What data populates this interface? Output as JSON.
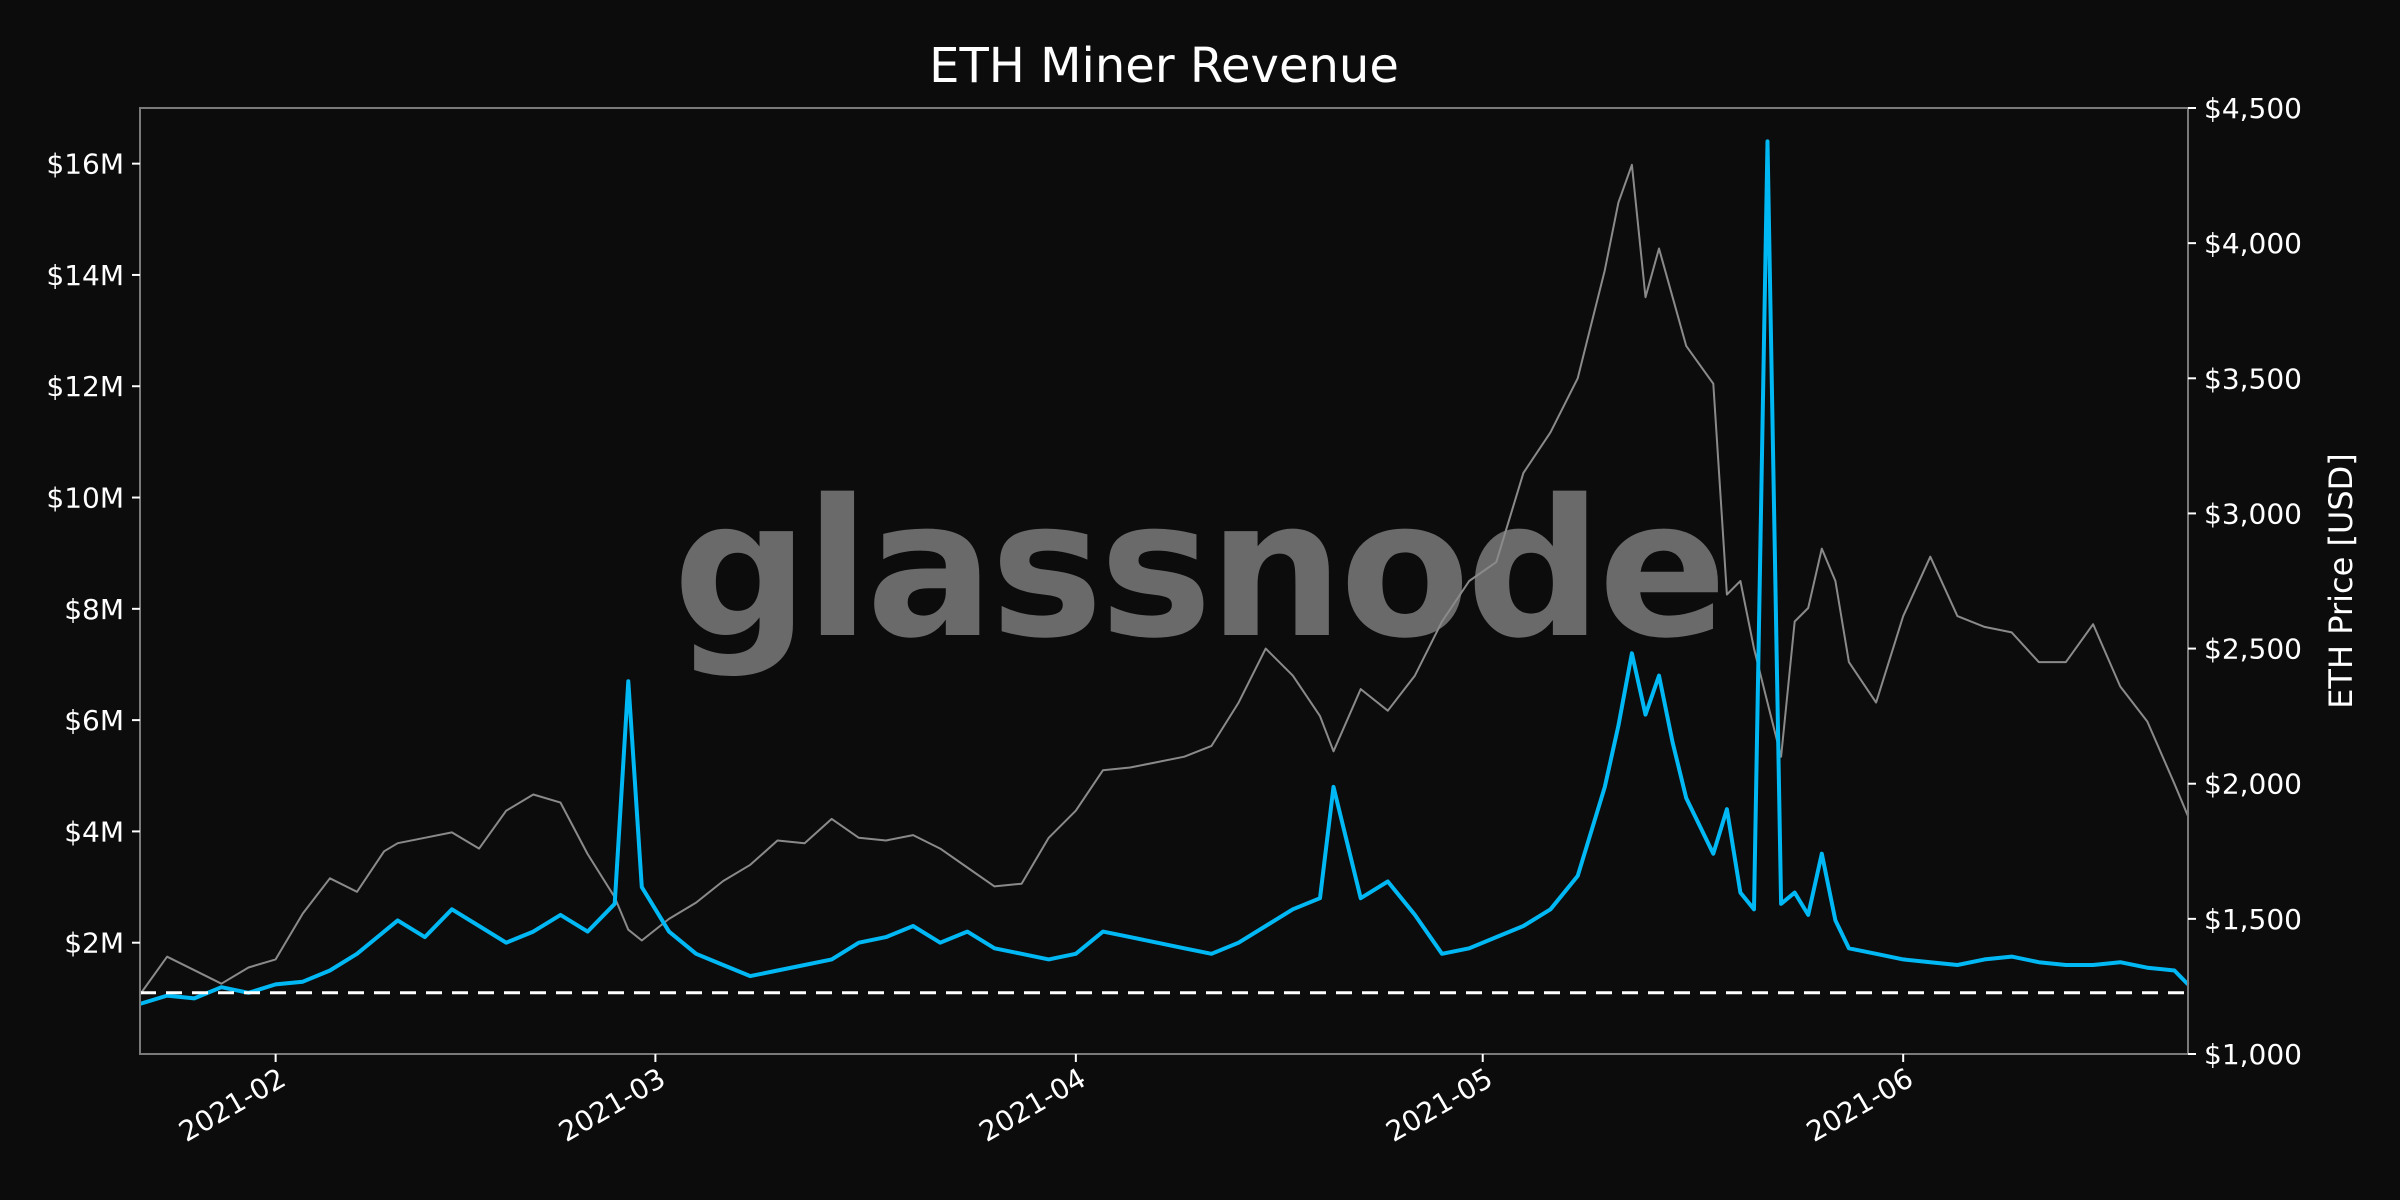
{
  "chart_data": {
    "type": "line",
    "title": "ETH Miner Revenue",
    "watermark": "glassnode",
    "x_range": [
      "2021-01-22",
      "2021-06-22"
    ],
    "x_ticks": [
      "2021-02",
      "2021-03",
      "2021-04",
      "2021-05",
      "2021-06"
    ],
    "x_tick_dates": [
      "2021-02-01",
      "2021-03-01",
      "2021-04-01",
      "2021-05-01",
      "2021-06-01"
    ],
    "y_left": {
      "label": "",
      "range": [
        0,
        17000000
      ],
      "ticks": [
        2000000,
        4000000,
        6000000,
        8000000,
        10000000,
        12000000,
        14000000,
        16000000
      ],
      "tick_labels": [
        "$2M",
        "$4M",
        "$6M",
        "$8M",
        "$10M",
        "$12M",
        "$14M",
        "$16M"
      ]
    },
    "y_right": {
      "label": "ETH Price [USD]",
      "range": [
        1000,
        4500
      ],
      "ticks": [
        1000,
        1500,
        2000,
        2500,
        3000,
        3500,
        4000,
        4500
      ],
      "tick_labels": [
        "$1,000",
        "$1,500",
        "$2,000",
        "$2,500",
        "$3,000",
        "$3,500",
        "$4,000",
        "$4,500"
      ]
    },
    "threshold": 1100000,
    "grid": false,
    "series": [
      {
        "axis": "left",
        "color": "#00b8f4",
        "points": [
          [
            "2021-01-22",
            900000
          ],
          [
            "2021-01-24",
            1050000
          ],
          [
            "2021-01-26",
            1000000
          ],
          [
            "2021-01-28",
            1200000
          ],
          [
            "2021-01-30",
            1100000
          ],
          [
            "2021-02-01",
            1250000
          ],
          [
            "2021-02-03",
            1300000
          ],
          [
            "2021-02-05",
            1500000
          ],
          [
            "2021-02-07",
            1800000
          ],
          [
            "2021-02-09",
            2200000
          ],
          [
            "2021-02-10",
            2400000
          ],
          [
            "2021-02-12",
            2100000
          ],
          [
            "2021-02-14",
            2600000
          ],
          [
            "2021-02-16",
            2300000
          ],
          [
            "2021-02-18",
            2000000
          ],
          [
            "2021-02-20",
            2200000
          ],
          [
            "2021-02-22",
            2500000
          ],
          [
            "2021-02-24",
            2200000
          ],
          [
            "2021-02-26",
            2700000
          ],
          [
            "2021-02-27",
            6700000
          ],
          [
            "2021-02-28",
            3000000
          ],
          [
            "2021-03-02",
            2200000
          ],
          [
            "2021-03-04",
            1800000
          ],
          [
            "2021-03-06",
            1600000
          ],
          [
            "2021-03-08",
            1400000
          ],
          [
            "2021-03-10",
            1500000
          ],
          [
            "2021-03-12",
            1600000
          ],
          [
            "2021-03-14",
            1700000
          ],
          [
            "2021-03-16",
            2000000
          ],
          [
            "2021-03-18",
            2100000
          ],
          [
            "2021-03-20",
            2300000
          ],
          [
            "2021-03-22",
            2000000
          ],
          [
            "2021-03-24",
            2200000
          ],
          [
            "2021-03-26",
            1900000
          ],
          [
            "2021-03-28",
            1800000
          ],
          [
            "2021-03-30",
            1700000
          ],
          [
            "2021-04-01",
            1800000
          ],
          [
            "2021-04-03",
            2200000
          ],
          [
            "2021-04-05",
            2100000
          ],
          [
            "2021-04-07",
            2000000
          ],
          [
            "2021-04-09",
            1900000
          ],
          [
            "2021-04-11",
            1800000
          ],
          [
            "2021-04-13",
            2000000
          ],
          [
            "2021-04-15",
            2300000
          ],
          [
            "2021-04-17",
            2600000
          ],
          [
            "2021-04-19",
            2800000
          ],
          [
            "2021-04-20",
            4800000
          ],
          [
            "2021-04-22",
            2800000
          ],
          [
            "2021-04-24",
            3100000
          ],
          [
            "2021-04-26",
            2500000
          ],
          [
            "2021-04-28",
            1800000
          ],
          [
            "2021-04-30",
            1900000
          ],
          [
            "2021-05-02",
            2100000
          ],
          [
            "2021-05-04",
            2300000
          ],
          [
            "2021-05-06",
            2600000
          ],
          [
            "2021-05-08",
            3200000
          ],
          [
            "2021-05-10",
            4800000
          ],
          [
            "2021-05-11",
            5900000
          ],
          [
            "2021-05-12",
            7200000
          ],
          [
            "2021-05-13",
            6100000
          ],
          [
            "2021-05-14",
            6800000
          ],
          [
            "2021-05-15",
            5600000
          ],
          [
            "2021-05-16",
            4600000
          ],
          [
            "2021-05-18",
            3600000
          ],
          [
            "2021-05-19",
            4400000
          ],
          [
            "2021-05-20",
            2900000
          ],
          [
            "2021-05-21",
            2600000
          ],
          [
            "2021-05-22",
            16400000
          ],
          [
            "2021-05-23",
            2700000
          ],
          [
            "2021-05-24",
            2900000
          ],
          [
            "2021-05-25",
            2500000
          ],
          [
            "2021-05-26",
            3600000
          ],
          [
            "2021-05-27",
            2400000
          ],
          [
            "2021-05-28",
            1900000
          ],
          [
            "2021-05-30",
            1800000
          ],
          [
            "2021-06-01",
            1700000
          ],
          [
            "2021-06-03",
            1650000
          ],
          [
            "2021-06-05",
            1600000
          ],
          [
            "2021-06-07",
            1700000
          ],
          [
            "2021-06-09",
            1750000
          ],
          [
            "2021-06-11",
            1650000
          ],
          [
            "2021-06-13",
            1600000
          ],
          [
            "2021-06-15",
            1600000
          ],
          [
            "2021-06-17",
            1650000
          ],
          [
            "2021-06-19",
            1550000
          ],
          [
            "2021-06-21",
            1500000
          ],
          [
            "2021-06-22",
            1250000
          ]
        ]
      },
      {
        "axis": "right",
        "color": "#8a8a8a",
        "points": [
          [
            "2021-01-22",
            1220
          ],
          [
            "2021-01-24",
            1360
          ],
          [
            "2021-01-26",
            1310
          ],
          [
            "2021-01-28",
            1260
          ],
          [
            "2021-01-30",
            1320
          ],
          [
            "2021-02-01",
            1350
          ],
          [
            "2021-02-03",
            1520
          ],
          [
            "2021-02-05",
            1650
          ],
          [
            "2021-02-07",
            1600
          ],
          [
            "2021-02-09",
            1750
          ],
          [
            "2021-02-10",
            1780
          ],
          [
            "2021-02-12",
            1800
          ],
          [
            "2021-02-14",
            1820
          ],
          [
            "2021-02-16",
            1760
          ],
          [
            "2021-02-18",
            1900
          ],
          [
            "2021-02-20",
            1960
          ],
          [
            "2021-02-22",
            1930
          ],
          [
            "2021-02-24",
            1740
          ],
          [
            "2021-02-26",
            1580
          ],
          [
            "2021-02-27",
            1460
          ],
          [
            "2021-02-28",
            1420
          ],
          [
            "2021-03-02",
            1500
          ],
          [
            "2021-03-04",
            1560
          ],
          [
            "2021-03-06",
            1640
          ],
          [
            "2021-03-08",
            1700
          ],
          [
            "2021-03-10",
            1790
          ],
          [
            "2021-03-12",
            1780
          ],
          [
            "2021-03-14",
            1870
          ],
          [
            "2021-03-16",
            1800
          ],
          [
            "2021-03-18",
            1790
          ],
          [
            "2021-03-20",
            1810
          ],
          [
            "2021-03-22",
            1760
          ],
          [
            "2021-03-24",
            1690
          ],
          [
            "2021-03-26",
            1620
          ],
          [
            "2021-03-28",
            1630
          ],
          [
            "2021-03-30",
            1800
          ],
          [
            "2021-04-01",
            1900
          ],
          [
            "2021-04-03",
            2050
          ],
          [
            "2021-04-05",
            2060
          ],
          [
            "2021-04-07",
            2080
          ],
          [
            "2021-04-09",
            2100
          ],
          [
            "2021-04-11",
            2140
          ],
          [
            "2021-04-13",
            2300
          ],
          [
            "2021-04-15",
            2500
          ],
          [
            "2021-04-17",
            2400
          ],
          [
            "2021-04-19",
            2250
          ],
          [
            "2021-04-20",
            2120
          ],
          [
            "2021-04-22",
            2350
          ],
          [
            "2021-04-24",
            2270
          ],
          [
            "2021-04-26",
            2400
          ],
          [
            "2021-04-28",
            2600
          ],
          [
            "2021-04-30",
            2750
          ],
          [
            "2021-05-02",
            2820
          ],
          [
            "2021-05-04",
            3150
          ],
          [
            "2021-05-06",
            3300
          ],
          [
            "2021-05-08",
            3500
          ],
          [
            "2021-05-10",
            3900
          ],
          [
            "2021-05-11",
            4150
          ],
          [
            "2021-05-12",
            4290
          ],
          [
            "2021-05-13",
            3800
          ],
          [
            "2021-05-14",
            3980
          ],
          [
            "2021-05-15",
            3800
          ],
          [
            "2021-05-16",
            3620
          ],
          [
            "2021-05-18",
            3480
          ],
          [
            "2021-05-19",
            2700
          ],
          [
            "2021-05-20",
            2750
          ],
          [
            "2021-05-21",
            2500
          ],
          [
            "2021-05-22",
            2300
          ],
          [
            "2021-05-23",
            2100
          ],
          [
            "2021-05-24",
            2600
          ],
          [
            "2021-05-25",
            2650
          ],
          [
            "2021-05-26",
            2870
          ],
          [
            "2021-05-27",
            2750
          ],
          [
            "2021-05-28",
            2450
          ],
          [
            "2021-05-30",
            2300
          ],
          [
            "2021-06-01",
            2620
          ],
          [
            "2021-06-03",
            2840
          ],
          [
            "2021-06-05",
            2620
          ],
          [
            "2021-06-07",
            2580
          ],
          [
            "2021-06-09",
            2560
          ],
          [
            "2021-06-11",
            2450
          ],
          [
            "2021-06-13",
            2450
          ],
          [
            "2021-06-15",
            2590
          ],
          [
            "2021-06-17",
            2360
          ],
          [
            "2021-06-19",
            2230
          ],
          [
            "2021-06-21",
            2000
          ],
          [
            "2021-06-22",
            1880
          ]
        ]
      }
    ]
  }
}
